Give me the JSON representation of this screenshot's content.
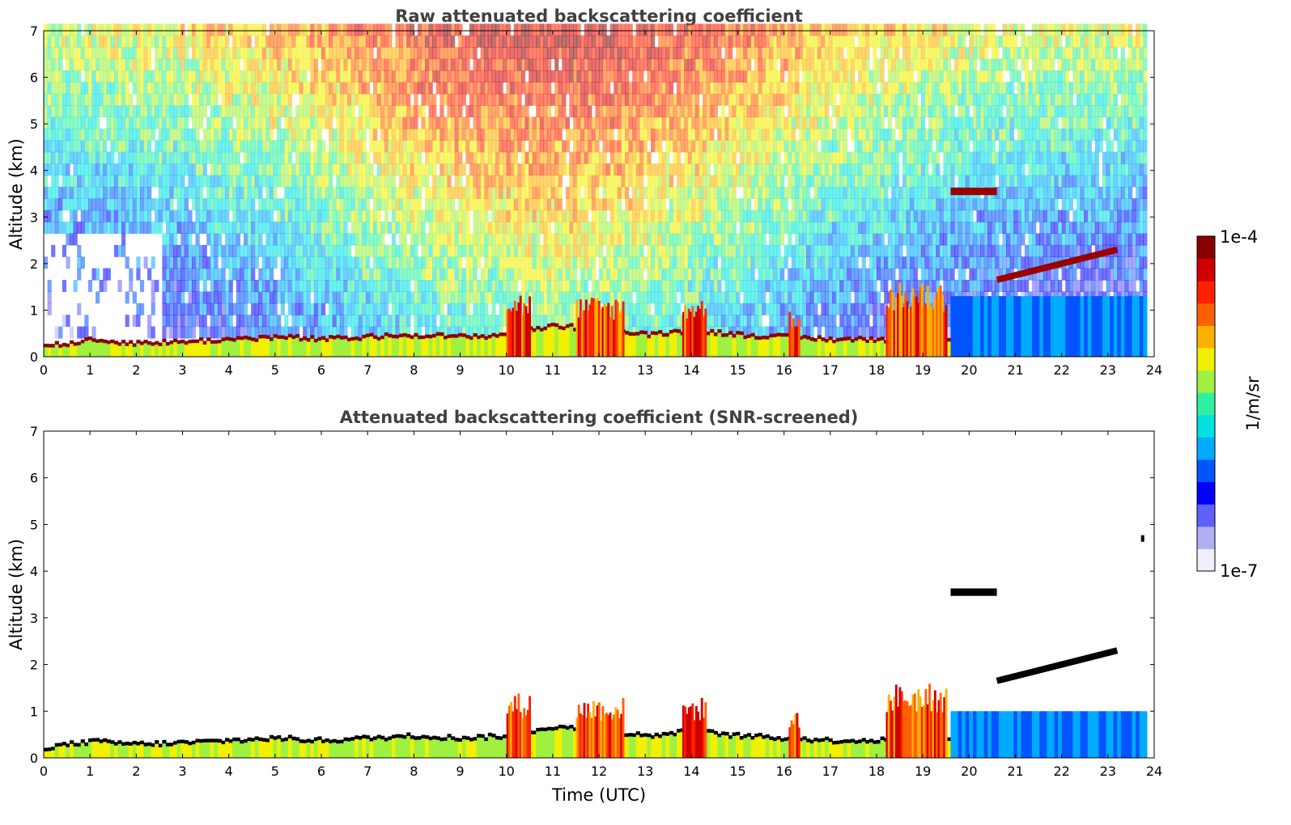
{
  "chart_data": [
    {
      "type": "heatmap",
      "title": "Raw attenuated backscattering coefficient",
      "xlabel": "",
      "ylabel": "Altitude (km)",
      "xlim": [
        0,
        24
      ],
      "ylim": [
        0,
        7
      ],
      "xticks": [
        "0",
        "1",
        "2",
        "3",
        "4",
        "5",
        "6",
        "7",
        "8",
        "9",
        "10",
        "11",
        "12",
        "13",
        "14",
        "15",
        "16",
        "17",
        "18",
        "19",
        "20",
        "21",
        "22",
        "23",
        "24"
      ],
      "yticks": [
        "0",
        "1",
        "2",
        "3",
        "4",
        "5",
        "6",
        "7"
      ],
      "data_end_hour": 23.8,
      "features": {
        "boundary_layer_top_km": [
          [
            0,
            0.15
          ],
          [
            1,
            0.28
          ],
          [
            2,
            0.22
          ],
          [
            3,
            0.25
          ],
          [
            4,
            0.3
          ],
          [
            5,
            0.35
          ],
          [
            6,
            0.3
          ],
          [
            7,
            0.35
          ],
          [
            8,
            0.4
          ],
          [
            9,
            0.35
          ],
          [
            10,
            0.4
          ],
          [
            11,
            0.6
          ],
          [
            12,
            0.5
          ],
          [
            13,
            0.4
          ],
          [
            14,
            0.5
          ],
          [
            15,
            0.4
          ],
          [
            16,
            0.35
          ],
          [
            17,
            0.3
          ],
          [
            18,
            0.3
          ],
          [
            19,
            0.3
          ]
        ],
        "aerosol_plumes": [
          {
            "t_start": 10.0,
            "t_end": 10.5,
            "top_km": 1.4
          },
          {
            "t_start": 11.5,
            "t_end": 12.5,
            "top_km": 1.3
          },
          {
            "t_start": 13.8,
            "t_end": 14.3,
            "top_km": 1.3
          },
          {
            "t_start": 16.1,
            "t_end": 16.3,
            "top_km": 1.0
          },
          {
            "t_start": 18.2,
            "t_end": 19.5,
            "top_km": 1.6
          }
        ],
        "elevated_layers": [
          {
            "t_start": 19.6,
            "t_end": 20.6,
            "alt_km": 3.55
          },
          {
            "t_start": 20.6,
            "t_end": 23.2,
            "alt_km_start": 1.65,
            "alt_km_end": 2.3
          }
        ],
        "noise_increases_with_altitude": true
      }
    },
    {
      "type": "heatmap",
      "title": "Attenuated backscattering coefficient (SNR-screened)",
      "xlabel": "Time (UTC)",
      "ylabel": "Altitude (km)",
      "xlim": [
        0,
        24
      ],
      "ylim": [
        0,
        7
      ],
      "xticks": [
        "0",
        "1",
        "2",
        "3",
        "4",
        "5",
        "6",
        "7",
        "8",
        "9",
        "10",
        "11",
        "12",
        "13",
        "14",
        "15",
        "16",
        "17",
        "18",
        "19",
        "20",
        "21",
        "22",
        "23",
        "24"
      ],
      "yticks": [
        "0",
        "1",
        "2",
        "3",
        "4",
        "5",
        "6",
        "7"
      ],
      "data_end_hour": 23.8,
      "features": {
        "screened_above_noise": true,
        "isolated_feature": {
          "t": 23.75,
          "alt_km": 4.7
        }
      }
    }
  ],
  "colorbar": {
    "label": "1/m/sr",
    "min_label": "1e-7",
    "max_label": "1e-4",
    "scale": "log",
    "colormap": [
      "#eeeeff",
      "#b0b0f0",
      "#6060ff",
      "#0000ff",
      "#0055ff",
      "#00aaff",
      "#00e0e0",
      "#30f0a0",
      "#a0f040",
      "#f0f000",
      "#ffb000",
      "#ff6000",
      "#ff2000",
      "#d00000",
      "#880000"
    ]
  }
}
